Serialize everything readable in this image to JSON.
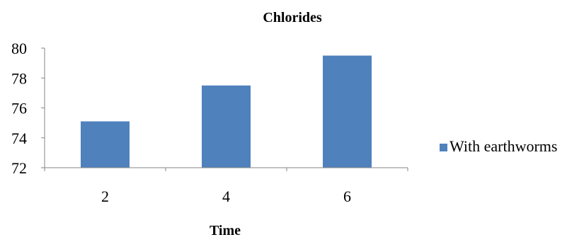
{
  "chart_data": {
    "type": "bar",
    "title": "Chlorides",
    "xlabel": "Time",
    "ylabel": "",
    "categories": [
      "2",
      "4",
      "6"
    ],
    "series": [
      {
        "name": "With earthworms",
        "values": [
          75.1,
          77.5,
          79.5
        ]
      }
    ],
    "ylim": [
      72,
      80
    ],
    "yticks": [
      "72",
      "74",
      "76",
      "78",
      "80"
    ],
    "grid": false,
    "legend_position": "right",
    "colors": {
      "bar": "#4F81BD",
      "axis": "#868686"
    }
  }
}
